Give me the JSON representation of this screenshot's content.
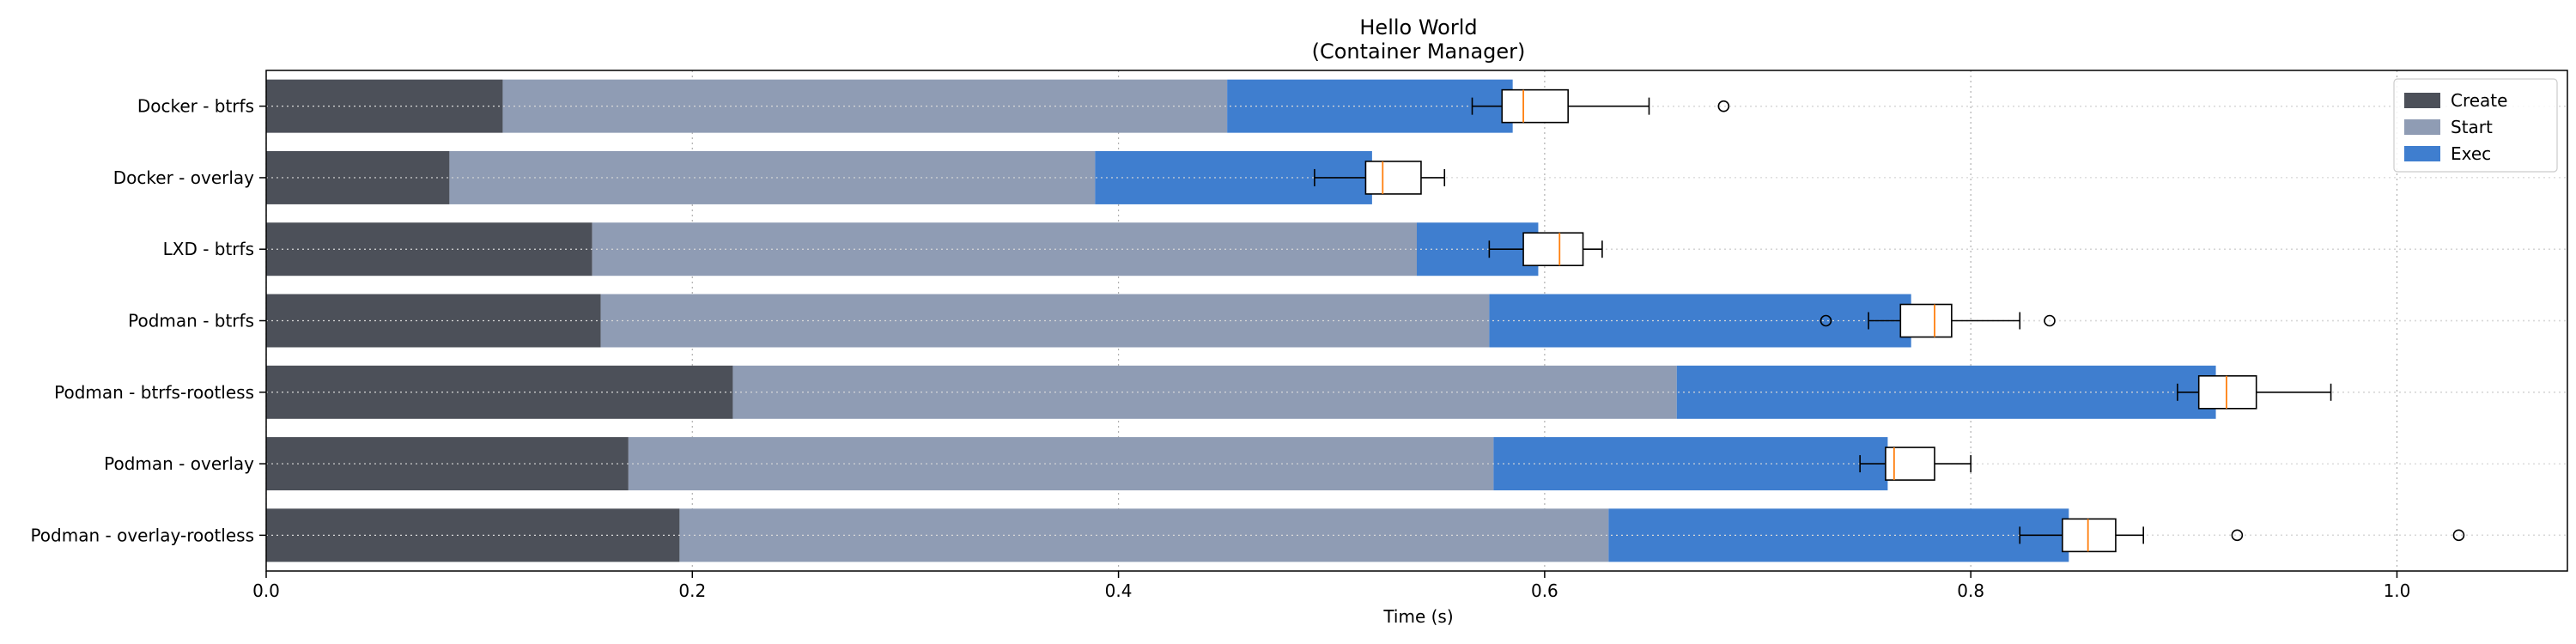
{
  "chart_data": {
    "type": "bar",
    "orientation": "horizontal",
    "stacked": true,
    "title": "Hello World",
    "subtitle": "(Container Manager)",
    "xlabel": "Time (s)",
    "ylabel": "",
    "xlim": [
      0,
      1.08
    ],
    "xticks": [
      0.0,
      0.2,
      0.4,
      0.6,
      0.8,
      1.0
    ],
    "xtick_labels": [
      "0.0",
      "0.2",
      "0.4",
      "0.6",
      "0.8",
      "1.0"
    ],
    "grid": true,
    "legend_position": "top-right",
    "categories": [
      "Docker - btrfs",
      "Docker - overlay",
      "LXD - btrfs",
      "Podman - btrfs",
      "Podman - btrfs-rootless",
      "Podman - overlay",
      "Podman - overlay-rootless"
    ],
    "series": [
      {
        "name": "Create",
        "color": "#4c5059",
        "values": [
          0.111,
          0.086,
          0.153,
          0.157,
          0.219,
          0.17,
          0.194
        ]
      },
      {
        "name": "Start",
        "color": "#8f9cb4",
        "values": [
          0.34,
          0.303,
          0.387,
          0.417,
          0.443,
          0.406,
          0.436
        ]
      },
      {
        "name": "Exec",
        "color": "#3f7ecf",
        "values": [
          0.134,
          0.13,
          0.057,
          0.198,
          0.253,
          0.185,
          0.216
        ]
      }
    ],
    "boxplots": [
      {
        "whisker_low": 0.566,
        "q1": 0.58,
        "median": 0.59,
        "q3": 0.611,
        "whisker_high": 0.649,
        "outliers": [
          0.684
        ]
      },
      {
        "whisker_low": 0.492,
        "q1": 0.516,
        "median": 0.524,
        "q3": 0.542,
        "whisker_high": 0.553,
        "outliers": []
      },
      {
        "whisker_low": 0.574,
        "q1": 0.59,
        "median": 0.607,
        "q3": 0.618,
        "whisker_high": 0.627,
        "outliers": []
      },
      {
        "whisker_low": 0.752,
        "q1": 0.767,
        "median": 0.783,
        "q3": 0.791,
        "whisker_high": 0.823,
        "outliers": [
          0.732,
          0.837
        ]
      },
      {
        "whisker_low": 0.897,
        "q1": 0.907,
        "median": 0.92,
        "q3": 0.934,
        "whisker_high": 0.969,
        "outliers": []
      },
      {
        "whisker_low": 0.748,
        "q1": 0.76,
        "median": 0.764,
        "q3": 0.783,
        "whisker_high": 0.8,
        "outliers": []
      },
      {
        "whisker_low": 0.823,
        "q1": 0.843,
        "median": 0.855,
        "q3": 0.868,
        "whisker_high": 0.881,
        "outliers": [
          0.925,
          1.029
        ]
      }
    ],
    "box_color": "#000000",
    "median_color": "#ff7f0e"
  }
}
